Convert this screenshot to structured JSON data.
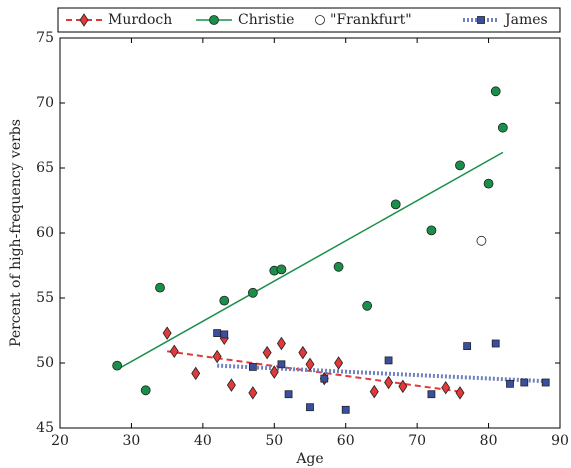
{
  "chart_data": {
    "type": "scatter",
    "xlabel": "Age",
    "ylabel": "Percent of high-frequency verbs",
    "xlim": [
      20,
      90
    ],
    "ylim": [
      45,
      75
    ],
    "xticks": [
      20,
      30,
      40,
      50,
      60,
      70,
      80,
      90
    ],
    "yticks": [
      45,
      50,
      55,
      60,
      65,
      70,
      75
    ],
    "legend": "top",
    "series": [
      {
        "name": "Murdoch",
        "color": "#e03a3a",
        "marker": "diamond",
        "linestyle": "dashed",
        "x": [
          35,
          36,
          39,
          42,
          43,
          44,
          47,
          49,
          50,
          51,
          54,
          55,
          57,
          59,
          64,
          66,
          68,
          74,
          76
        ],
        "values": [
          52.3,
          50.9,
          49.2,
          50.5,
          51.9,
          48.3,
          47.7,
          50.8,
          49.3,
          51.5,
          50.8,
          49.9,
          48.8,
          50.0,
          47.8,
          48.5,
          48.2,
          48.1,
          47.7
        ],
        "trend": {
          "x": [
            35,
            76
          ],
          "values": [
            50.9,
            47.8
          ]
        }
      },
      {
        "name": "Christie",
        "color": "#1a8f4a",
        "marker": "circle",
        "linestyle": "solid",
        "x": [
          28,
          32,
          34,
          43,
          47,
          50,
          51,
          59,
          63,
          67,
          72,
          76,
          80,
          81,
          82
        ],
        "values": [
          49.8,
          47.9,
          55.8,
          54.8,
          55.4,
          57.1,
          57.2,
          57.4,
          54.4,
          62.2,
          60.2,
          65.2,
          63.8,
          70.9,
          68.1
        ],
        "trend": {
          "x": [
            28,
            82
          ],
          "values": [
            49.5,
            66.2
          ]
        }
      },
      {
        "name": "\"Frankfurt\"",
        "color": "#ffffff",
        "marker": "circle",
        "linestyle": "none",
        "x": [
          79
        ],
        "values": [
          59.4
        ]
      },
      {
        "name": "James",
        "color": "#3a4fa0",
        "marker": "square",
        "linestyle": "dotted",
        "x": [
          42,
          43,
          47,
          51,
          52,
          55,
          57,
          60,
          66,
          72,
          77,
          81,
          83,
          85,
          88
        ],
        "values": [
          52.3,
          52.2,
          49.7,
          49.9,
          47.6,
          46.6,
          48.8,
          46.4,
          50.2,
          47.6,
          51.3,
          51.5,
          48.4,
          48.5,
          48.5
        ],
        "trend": {
          "x": [
            42,
            88
          ],
          "values": [
            49.8,
            48.6
          ]
        }
      }
    ]
  }
}
